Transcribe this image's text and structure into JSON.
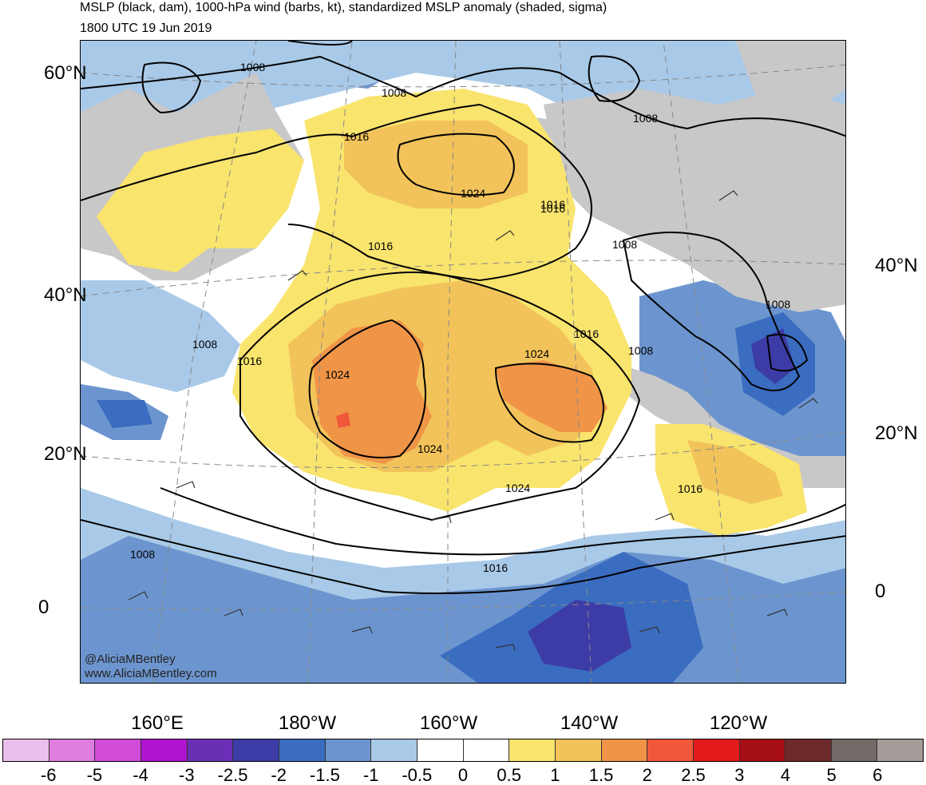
{
  "title": "MSLP (black, dam), 1000-hPa wind (barbs, kt), standardized MSLP anomaly (shaded, sigma)",
  "valid_time": "1800 UTC 19 Jun 2019",
  "credit": {
    "handle": "@AliciaMBentley",
    "website": "www.AliciaMBentley.com"
  },
  "lat_labels_left": [
    "60°N",
    "40°N",
    "20°N",
    "0"
  ],
  "lat_labels_right": [
    "40°N",
    "20°N",
    "0"
  ],
  "lon_labels": [
    "160°E",
    "180°W",
    "160°W",
    "140°W",
    "120°W"
  ],
  "contour_labels": [
    "1008",
    "1008",
    "1016",
    "1024",
    "1016",
    "1016",
    "1008",
    "1016",
    "1024",
    "1016",
    "1024",
    "1008",
    "1008",
    "1008",
    "1024",
    "1016",
    "1008",
    "1016",
    "1024",
    "1016",
    "1008"
  ],
  "colorbar": {
    "labels": [
      "-6",
      "-5",
      "-4",
      "-3",
      "-2.5",
      "-2",
      "-1.5",
      "-1",
      "-0.5",
      "0",
      "0.5",
      "1",
      "1.5",
      "2",
      "2.5",
      "3",
      "4",
      "5",
      "6"
    ],
    "colors": [
      "#ebbfeb",
      "#e07ee0",
      "#d24bd9",
      "#b014cf",
      "#6b2fb5",
      "#3d3ca6",
      "#3a6cc0",
      "#6c95cf",
      "#a9c9e8",
      "#ffffff",
      "#ffffff",
      "#f9e46d",
      "#f2c35a",
      "#f09448",
      "#f0583a",
      "#e31a1c",
      "#a50f15",
      "#6e2a2a",
      "#746a68",
      "#a59b98"
    ]
  },
  "colors": {
    "land": "#c8c8c8",
    "contour": "#000000",
    "grid": "#888888"
  }
}
